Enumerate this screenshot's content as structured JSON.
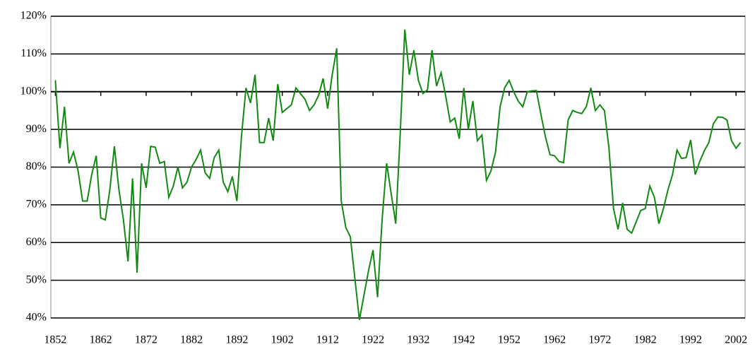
{
  "chart_data": {
    "type": "line",
    "x": [
      1852,
      1853,
      1854,
      1855,
      1856,
      1857,
      1858,
      1859,
      1860,
      1861,
      1862,
      1863,
      1864,
      1865,
      1866,
      1867,
      1868,
      1869,
      1870,
      1871,
      1872,
      1873,
      1874,
      1875,
      1876,
      1877,
      1878,
      1879,
      1880,
      1881,
      1882,
      1883,
      1884,
      1885,
      1886,
      1887,
      1888,
      1889,
      1890,
      1891,
      1892,
      1893,
      1894,
      1895,
      1896,
      1897,
      1898,
      1899,
      1900,
      1901,
      1902,
      1903,
      1904,
      1905,
      1906,
      1907,
      1908,
      1909,
      1910,
      1911,
      1912,
      1913,
      1914,
      1915,
      1916,
      1917,
      1918,
      1919,
      1920,
      1921,
      1922,
      1923,
      1924,
      1925,
      1926,
      1927,
      1928,
      1929,
      1930,
      1931,
      1932,
      1933,
      1934,
      1935,
      1936,
      1937,
      1938,
      1939,
      1940,
      1941,
      1942,
      1943,
      1944,
      1945,
      1946,
      1947,
      1948,
      1949,
      1950,
      1951,
      1952,
      1953,
      1954,
      1955,
      1956,
      1957,
      1958,
      1959,
      1960,
      1961,
      1962,
      1963,
      1964,
      1965,
      1966,
      1967,
      1968,
      1969,
      1970,
      1971,
      1972,
      1973,
      1974,
      1975,
      1976,
      1977,
      1978,
      1979,
      1980,
      1981,
      1982,
      1983,
      1984,
      1985,
      1986,
      1987,
      1988,
      1989,
      1990,
      1991,
      1992,
      1993,
      1994,
      1995,
      1996,
      1997,
      1998,
      1999,
      2000,
      2001,
      2002,
      2003
    ],
    "series": [
      {
        "color": "#128a12",
        "values": [
          103,
          85,
          96,
          81,
          84,
          79,
          71,
          71,
          78,
          83,
          66.5,
          66,
          74,
          85.5,
          74,
          66,
          55,
          77,
          52,
          81,
          74.5,
          85.5,
          85.3,
          81,
          81.5,
          72,
          75,
          80,
          74.5,
          76,
          80,
          82,
          84.5,
          78.5,
          77,
          82.5,
          84.5,
          76,
          73.5,
          77.5,
          71,
          88,
          101,
          97,
          104.5,
          86.5,
          86.5,
          93,
          87,
          102,
          94.5,
          95.5,
          96.5,
          101,
          99.5,
          98,
          95,
          96.5,
          99,
          103.5,
          95.5,
          104.5,
          111.5,
          71,
          64,
          61.5,
          50.5,
          39.5,
          46,
          52.5,
          58,
          45.5,
          66,
          81,
          73,
          65,
          89,
          116.5,
          104.5,
          111,
          103,
          99.5,
          100.5,
          111,
          101.5,
          105,
          99,
          92,
          93,
          87.5,
          101,
          90,
          97.5,
          87,
          88.5,
          76.5,
          79,
          84,
          96,
          101,
          103,
          100,
          97.5,
          96,
          100,
          100.2,
          100.3,
          94,
          88,
          83.3,
          83,
          81.5,
          81.2,
          92.5,
          95,
          94.5,
          94.2,
          96,
          101,
          95,
          96.5,
          95,
          85,
          69,
          63.5,
          70.5,
          63.5,
          62.5,
          65.5,
          68.5,
          69,
          75,
          72,
          65,
          69,
          74,
          78,
          84.5,
          82.3,
          82.5,
          87.2,
          78,
          81.5,
          84.3,
          86.5,
          91.5,
          93.3,
          93.2,
          92.5,
          87,
          85,
          86.5
        ]
      }
    ],
    "xlim": [
      1851,
      2004
    ],
    "xticks": [
      1852,
      1862,
      1872,
      1882,
      1892,
      1902,
      1912,
      1922,
      1932,
      1942,
      1952,
      1962,
      1972,
      1982,
      1992,
      2002
    ],
    "ylim": [
      40,
      120
    ],
    "yticks": [
      {
        "value": 40,
        "label": "40%"
      },
      {
        "value": 50,
        "label": "50%"
      },
      {
        "value": 60,
        "label": "60%"
      },
      {
        "value": 70,
        "label": "70%"
      },
      {
        "value": 80,
        "label": "80%"
      },
      {
        "value": 90,
        "label": "90%"
      },
      {
        "value": 100,
        "label": "100%"
      },
      {
        "value": 110,
        "label": "110%"
      },
      {
        "value": 120,
        "label": "120%"
      }
    ],
    "x_axis_crossing": 100,
    "grid": true
  }
}
